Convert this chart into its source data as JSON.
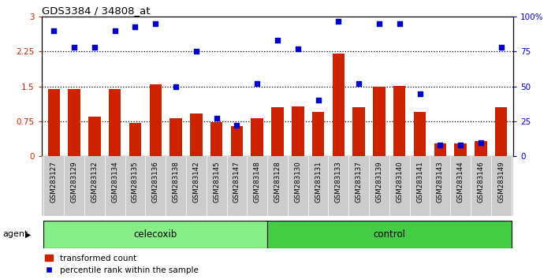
{
  "title": "GDS3384 / 34808_at",
  "samples": [
    "GSM283127",
    "GSM283129",
    "GSM283132",
    "GSM283134",
    "GSM283135",
    "GSM283136",
    "GSM283138",
    "GSM283142",
    "GSM283145",
    "GSM283147",
    "GSM283148",
    "GSM283128",
    "GSM283130",
    "GSM283131",
    "GSM283133",
    "GSM283137",
    "GSM283139",
    "GSM283140",
    "GSM283141",
    "GSM283143",
    "GSM283144",
    "GSM283146",
    "GSM283149"
  ],
  "bar_values": [
    1.45,
    1.45,
    0.85,
    1.45,
    0.72,
    1.55,
    0.82,
    0.92,
    0.73,
    0.65,
    0.82,
    1.05,
    1.08,
    0.95,
    2.2,
    1.05,
    1.5,
    1.52,
    0.95,
    0.28,
    0.28,
    0.32,
    1.05
  ],
  "dot_values": [
    90,
    78,
    78,
    90,
    93,
    95,
    50,
    75,
    27,
    22,
    52,
    83,
    77,
    40,
    97,
    52,
    95,
    95,
    45,
    8,
    8,
    10,
    78
  ],
  "celecoxib_count": 11,
  "control_count": 12,
  "bar_color": "#CC2200",
  "dot_color": "#0000CC",
  "ylim_left": [
    0,
    3
  ],
  "ylim_right": [
    0,
    100
  ],
  "yticks_left": [
    0,
    0.75,
    1.5,
    2.25,
    3
  ],
  "yticks_right": [
    0,
    25,
    50,
    75,
    100
  ],
  "ytick_labels_left": [
    "0",
    "0.75",
    "1.5",
    "2.25",
    "3"
  ],
  "ytick_labels_right": [
    "0",
    "25",
    "50",
    "75",
    "100%"
  ],
  "hlines": [
    0.75,
    1.5,
    2.25
  ],
  "agent_label": "agent",
  "celecoxib_label": "celecoxib",
  "control_label": "control",
  "legend_bar": "transformed count",
  "legend_dot": "percentile rank within the sample",
  "bg_color": "#ffffff",
  "panel_bg": "#cccccc",
  "agent_bar_celecoxib_color": "#88ee88",
  "agent_bar_control_color": "#44cc44"
}
